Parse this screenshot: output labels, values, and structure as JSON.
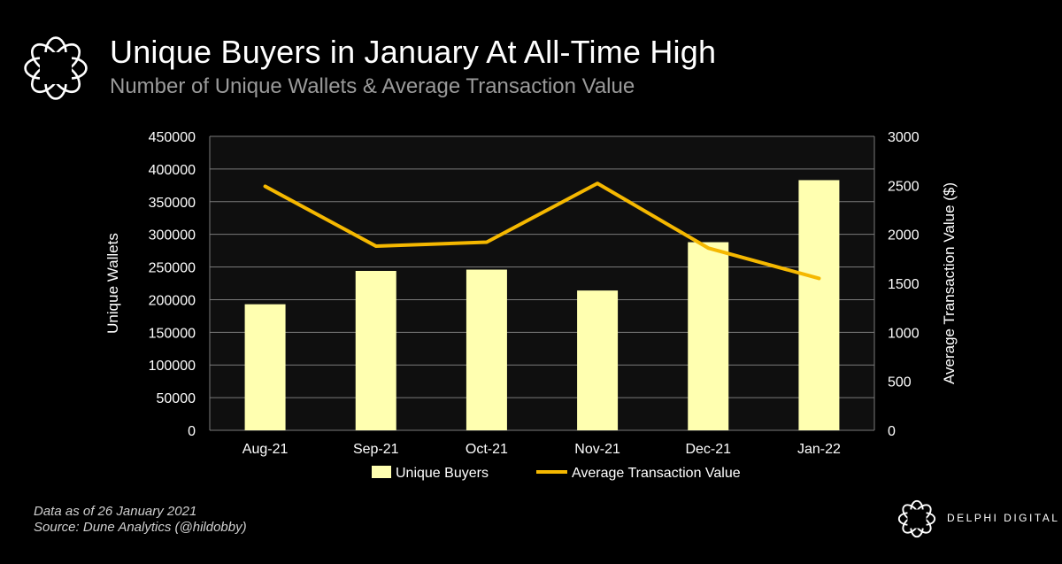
{
  "header": {
    "title": "Unique Buyers in January At All-Time High",
    "subtitle": "Number of Unique Wallets & Average Transaction Value"
  },
  "footer": {
    "note": "Data as of 26 January 2021",
    "source": "Source: Dune Analytics (@hildobby)"
  },
  "brand": {
    "name": "DELPHI DIGITAL"
  },
  "colors": {
    "background": "#000000",
    "plot_background": "#0f0f0f",
    "bar": "#ffffb0",
    "line": "#f5b800",
    "grid": "#7a7a7a"
  },
  "chart_data": {
    "type": "bar",
    "title": "Unique Buyers in January At All-Time High",
    "categories": [
      "Aug-21",
      "Sep-21",
      "Oct-21",
      "Nov-21",
      "Dec-21",
      "Jan-22"
    ],
    "series": [
      {
        "name": "Unique Buyers",
        "type": "bar",
        "axis": "left",
        "values": [
          193000,
          244000,
          246000,
          214000,
          288000,
          383000
        ]
      },
      {
        "name": "Average Transaction Value",
        "type": "line",
        "axis": "right",
        "values": [
          2490,
          1880,
          1920,
          2520,
          1860,
          1550
        ]
      }
    ],
    "ylabel": "Unique Wallets",
    "ylabel_right": "Average Transaction Value ($)",
    "ylim": [
      0,
      450000
    ],
    "ylim_right": [
      0,
      3000
    ],
    "yticks": [
      "0",
      "50000",
      "100000",
      "150000",
      "200000",
      "250000",
      "300000",
      "350000",
      "400000",
      "450000"
    ],
    "yticks_right": [
      "0",
      "500",
      "1000",
      "1500",
      "2000",
      "2500",
      "3000"
    ],
    "grid": true,
    "legend": "bottom-center"
  }
}
